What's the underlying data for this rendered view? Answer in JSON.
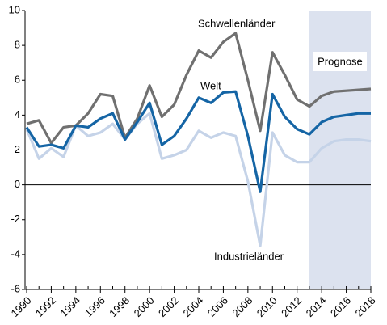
{
  "chart_data": {
    "type": "line",
    "x": [
      1990,
      1991,
      1992,
      1993,
      1994,
      1995,
      1996,
      1997,
      1998,
      1999,
      2000,
      2001,
      2002,
      2003,
      2004,
      2005,
      2006,
      2007,
      2008,
      2009,
      2010,
      2011,
      2012,
      2013,
      2014,
      2015,
      2016,
      2017,
      2018
    ],
    "series": [
      {
        "name": "Schwellenländer",
        "color": "#707070",
        "values": [
          3.5,
          3.7,
          2.4,
          3.3,
          3.4,
          4.1,
          5.2,
          5.1,
          2.7,
          3.8,
          5.7,
          3.9,
          4.6,
          6.3,
          7.7,
          7.3,
          8.2,
          8.7,
          6.0,
          3.1,
          7.6,
          6.3,
          4.9,
          4.5,
          5.1,
          5.35,
          5.4,
          5.45,
          5.5
        ]
      },
      {
        "name": "Welt",
        "color": "#1565a5",
        "values": [
          3.3,
          2.2,
          2.3,
          2.1,
          3.4,
          3.3,
          3.8,
          4.1,
          2.6,
          3.6,
          4.7,
          2.3,
          2.8,
          3.8,
          5.0,
          4.7,
          5.3,
          5.35,
          2.8,
          -0.4,
          5.2,
          3.9,
          3.2,
          2.9,
          3.6,
          3.9,
          4.0,
          4.1,
          4.1
        ]
      },
      {
        "name": "Industrieländer",
        "color": "#c5d3e8",
        "values": [
          3.2,
          1.5,
          2.1,
          1.6,
          3.4,
          2.8,
          3.0,
          3.5,
          2.6,
          3.5,
          4.1,
          1.5,
          1.7,
          2.0,
          3.1,
          2.7,
          3.0,
          2.8,
          0.2,
          -3.5,
          3.0,
          1.7,
          1.3,
          1.3,
          2.1,
          2.5,
          2.6,
          2.6,
          2.5
        ]
      }
    ],
    "xlim": [
      1990,
      2018
    ],
    "xticks": [
      1990,
      1992,
      1994,
      1996,
      1998,
      2000,
      2002,
      2004,
      2006,
      2008,
      2010,
      2012,
      2014,
      2016,
      2018
    ],
    "ylim": [
      -6,
      10
    ],
    "yticks": [
      -6,
      -4,
      -2,
      0,
      2,
      4,
      6,
      8,
      10
    ],
    "forecast_region": [
      2013,
      2018
    ],
    "forecast_color": "#dce2ef",
    "forecast_label": "Prognose",
    "grid": false
  }
}
